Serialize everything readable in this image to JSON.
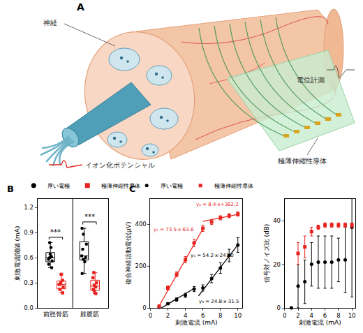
{
  "diagram": {
    "label": "A",
    "texts": {
      "nerve": "神経",
      "recording": "電位計測",
      "ionization": "イオン化ポテンシャル",
      "conductor": "極薄伸縮性導体"
    }
  },
  "chart_data": [
    {
      "label": "B",
      "type": "box",
      "categories": [
        "前脛骨筋",
        "腓腹筋"
      ],
      "y_label": "刺激電流閾値 (mA)",
      "ylim": [
        0,
        1.3
      ],
      "yticks": [
        {
          "value": 0,
          "label": "0.0"
        },
        0.3,
        0.6,
        0.9,
        1.2
      ],
      "legend": "top",
      "series": [
        {
          "name": "厚い電極",
          "color": "#000000",
          "marker": "circle",
          "values": [
            [
              0.78,
              0.72,
              0.64,
              0.61,
              0.6,
              0.58,
              0.56,
              0.52,
              0.48
            ],
            [
              0.95,
              0.88,
              0.76,
              0.7,
              0.62,
              0.6,
              0.58,
              0.55,
              0.41
            ]
          ]
        },
        {
          "name": "極薄伸縮性導体",
          "color": "#e8231f",
          "marker": "square",
          "values": [
            [
              0.4,
              0.33,
              0.3,
              0.28,
              0.25,
              0.22,
              0.18
            ],
            [
              0.42,
              0.36,
              0.3,
              0.27,
              0.25,
              0.22,
              0.2,
              0.17
            ]
          ]
        }
      ],
      "annotations": [
        {
          "category": "前脛骨筋",
          "text": "***"
        },
        {
          "category": "腓腹筋",
          "text": "***"
        }
      ]
    },
    {
      "label": "C",
      "type": "scatter",
      "x": [
        1,
        2,
        3,
        4,
        5,
        6,
        7,
        8,
        9,
        10
      ],
      "x_label": "刺激電流 (mA)",
      "y_label": "複合神経活動電位(μV)",
      "xlim": [
        0,
        10.5
      ],
      "xticks": [
        0,
        2,
        4,
        6,
        8,
        10
      ],
      "ylim": [
        0,
        520
      ],
      "yticks": [
        0,
        200,
        400
      ],
      "legend": "top",
      "series": [
        {
          "name": "厚い電極",
          "color": "#000000",
          "marker": "circle",
          "values": [
            3,
            20,
            40,
            60,
            90,
            95,
            140,
            190,
            250,
            300
          ],
          "errors": [
            3,
            5,
            8,
            10,
            12,
            15,
            20,
            25,
            30,
            35
          ]
        },
        {
          "name": "極薄伸縮性導体",
          "color": "#e8231f",
          "marker": "square",
          "values": [
            8,
            95,
            160,
            230,
            310,
            380,
            410,
            430,
            440,
            448
          ],
          "errors": [
            3,
            10,
            12,
            15,
            18,
            15,
            12,
            10,
            10,
            10
          ]
        }
      ],
      "fits": [
        {
          "label": "y₁ = 73.5·x-63.6",
          "slope": 73.5,
          "intercept": -63.6,
          "x_range": [
            1,
            6
          ],
          "color": "#e8231f"
        },
        {
          "label": "y₂ = 8.4·x+362.2",
          "slope": 8.4,
          "intercept": 362.2,
          "x_range": [
            6,
            10
          ],
          "color": "#e8231f"
        },
        {
          "label": "y₃ = 24.8·x-31.5",
          "slope": 24.8,
          "intercept": -31.5,
          "x_range": [
            1,
            5
          ],
          "color": "#000000"
        },
        {
          "label": "y₄ = 54.2·x-241.0",
          "slope": 54.2,
          "intercept": -241.0,
          "x_range": [
            5.5,
            10
          ],
          "color": "#000000"
        }
      ]
    },
    {
      "type": "scatter",
      "x": [
        1,
        2,
        3,
        4,
        5,
        6,
        7,
        8,
        9,
        10
      ],
      "x_label": "刺激電流 (mA)",
      "y_label": "信号対ノイズ比 (dB)",
      "xlim": [
        0,
        10.5
      ],
      "xticks": [
        0,
        2,
        4,
        6,
        8,
        10
      ],
      "ylim": [
        0,
        50
      ],
      "yticks": [
        0,
        20,
        40
      ],
      "series": [
        {
          "name": "厚い電極",
          "color": "#000000",
          "marker": "circle",
          "values": [
            0,
            10,
            12,
            20,
            21,
            21,
            21,
            22,
            22,
            37
          ],
          "errors": [
            0,
            10,
            10,
            10,
            12,
            12,
            12,
            10,
            15,
            32
          ]
        },
        {
          "name": "極薄伸縮性導体",
          "color": "#e8231f",
          "marker": "square",
          "values": [
            null,
            25,
            28,
            35,
            37,
            38,
            38,
            38,
            38,
            38
          ],
          "errors": [
            null,
            5,
            5,
            2,
            1,
            1,
            1,
            1,
            1,
            1
          ]
        }
      ]
    }
  ]
}
